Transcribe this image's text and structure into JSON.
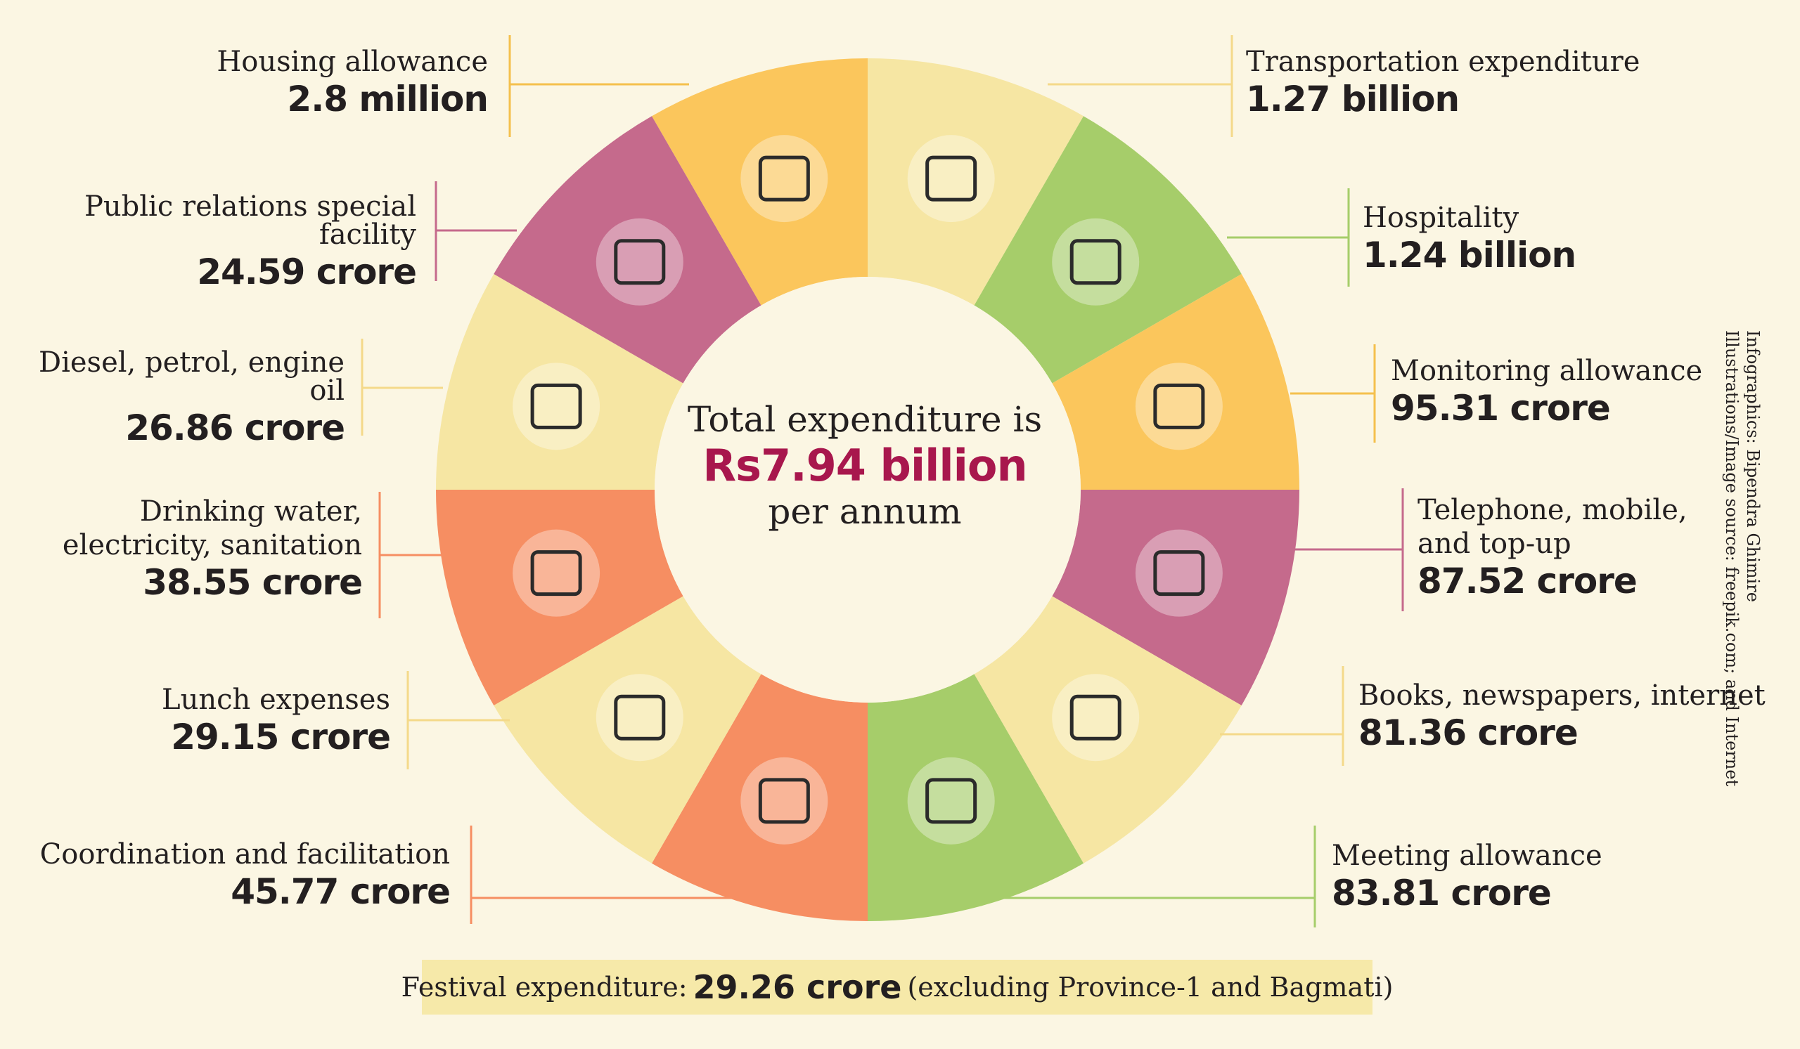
{
  "center": {
    "line1": "Total expenditure is",
    "line2": "Rs7.94 billion",
    "line3": "per annum"
  },
  "items": [
    {
      "title": "Housing allowance",
      "value": "2.8 million",
      "color": "#fbc65c",
      "icon": "house-icon"
    },
    {
      "title": "Transportation expenditure",
      "value": "1.27 billion",
      "color": "#f6e6a3",
      "icon": "car-icon"
    },
    {
      "title": "Hospitality",
      "value": "1.24 billion",
      "color": "#a6cd6a",
      "icon": "dining-table-icon"
    },
    {
      "title": "Monitoring allowance",
      "value": "95.31 crore",
      "color": "#fbc65c",
      "icon": "detective-icon"
    },
    {
      "title": "Telephone, mobile, and top-up",
      "title_lines": [
        "Telephone, mobile,",
        "and top-up"
      ],
      "value": "87.52 crore",
      "color": "#c56a8c",
      "icon": "phone-icon"
    },
    {
      "title": "Books, newspapers, internet",
      "value": "81.36 crore",
      "color": "#f6e6a3",
      "icon": "newspaper-wifi-icon"
    },
    {
      "title": "Meeting allowance",
      "value": "83.81 crore",
      "color": "#a6cd6a",
      "icon": "meeting-table-icon"
    },
    {
      "title": "Coordination and facilitation",
      "value": "45.77 crore",
      "color": "#f68e62",
      "icon": "network-people-icon"
    },
    {
      "title": "Lunch expenses",
      "value": "29.15 crore",
      "color": "#f6e6a3",
      "icon": "food-plate-icon"
    },
    {
      "title": "Drinking water, electricity, sanitation",
      "title_lines": [
        "Drinking water,",
        "electricity, sanitation"
      ],
      "value": "38.55 crore",
      "color": "#f68e62",
      "icon": "utilities-icon"
    },
    {
      "title": "Diesel, petrol, engine oil",
      "value": "26.86 crore",
      "color": "#f6e6a3",
      "icon": "fuel-pump-icon"
    },
    {
      "title": "Public relations special facility",
      "value": "24.59 crore",
      "color": "#c56a8c",
      "icon": "handshake-people-icon"
    }
  ],
  "festival": {
    "prefix": "Festival expenditure:",
    "value": "29.26 crore",
    "suffix": "(excluding Province-1 and Bagmati)"
  },
  "credit": {
    "line1": "Infographics: Bipendra Ghimire",
    "line2": "Illustrations/Image source: freepik.com; and Internet"
  }
}
